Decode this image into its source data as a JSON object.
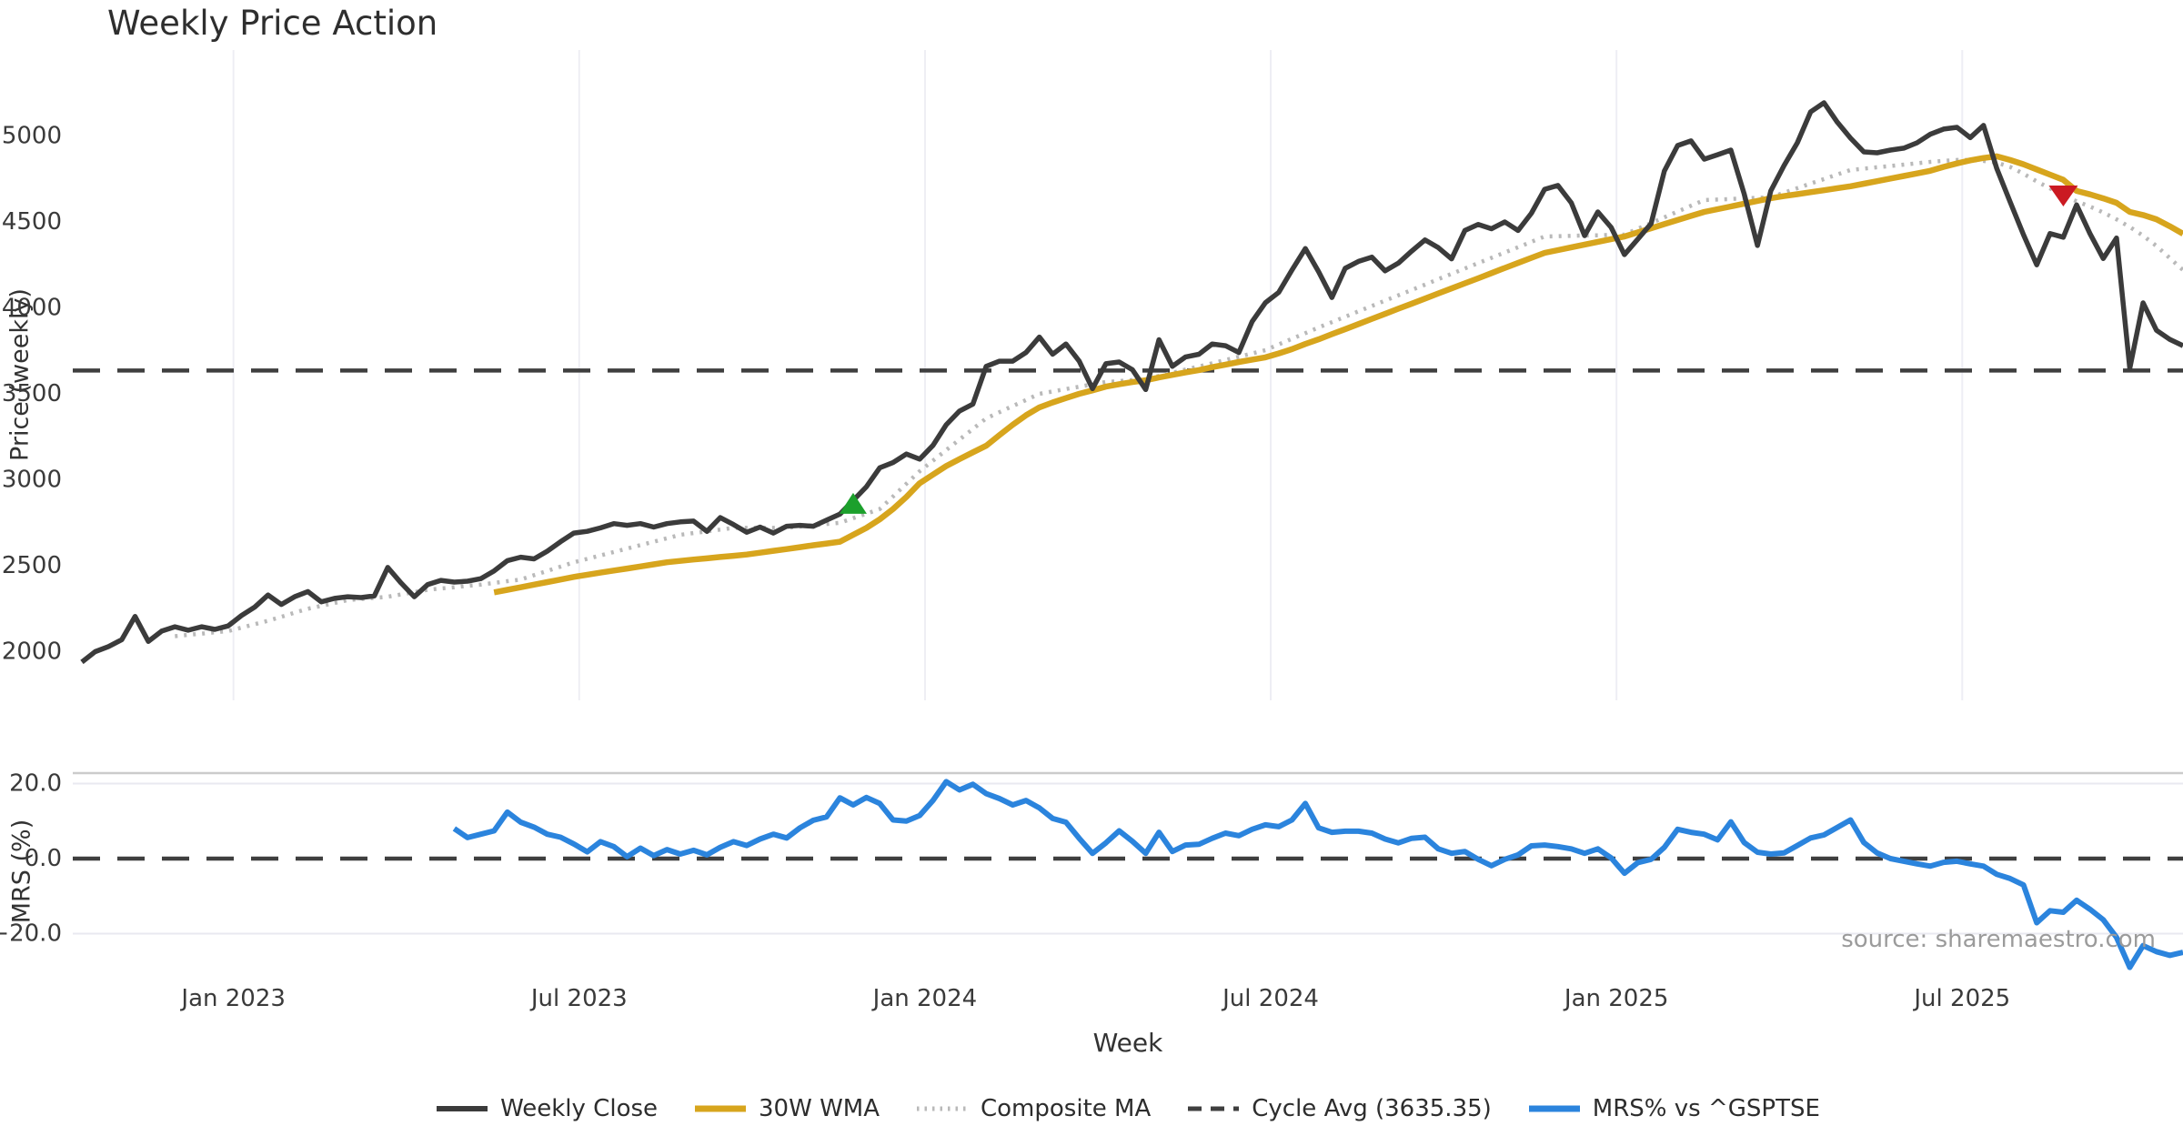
{
  "title": "Weekly Price Action",
  "xlabel": "Week",
  "source": "source: sharemaestro.com",
  "colors": {
    "weekly_close": "#3b3b3b",
    "wma_30w": "#d7a51d",
    "composite_ma": "#b9b9b9",
    "cycle_avg": "#3f3f3f",
    "mrs": "#2b84dd",
    "buy_marker_green": "#1ca02c",
    "sell_marker_red": "#cb1a22",
    "gridline": "#eeeef4",
    "panel_spine": "#cbcbcb",
    "source_text": "#9b9b9b"
  },
  "legend": [
    {
      "label": "Weekly Close",
      "color": "#3b3b3b",
      "style": "solid",
      "width": 6
    },
    {
      "label": "30W WMA",
      "color": "#d7a51d",
      "style": "solid",
      "width": 7
    },
    {
      "label": "Composite MA",
      "color": "#b9b9b9",
      "style": "dotted",
      "width": 5
    },
    {
      "label": "Cycle Avg (3635.35)",
      "color": "#3f3f3f",
      "style": "dashed",
      "width": 5
    },
    {
      "label": "MRS% vs ^GSPTSE",
      "color": "#2b84dd",
      "style": "solid",
      "width": 7
    }
  ],
  "chart_data": {
    "type": "line",
    "x_axis": {
      "label": "Week",
      "start_date": "2022-10-17",
      "interval": "weekly",
      "num_weeks": 159,
      "ticks": [
        {
          "label": "Jan 2023",
          "week": 11.4
        },
        {
          "label": "Jul 2023",
          "week": 37.4
        },
        {
          "label": "Jan 2024",
          "week": 63.4
        },
        {
          "label": "Jul 2024",
          "week": 89.4
        },
        {
          "label": "Jan 2025",
          "week": 115.4
        },
        {
          "label": "Jul 2025",
          "week": 141.4
        }
      ]
    },
    "panels": [
      {
        "id": "price",
        "ylabel": "Price (weekly)",
        "ylim": [
          1717,
          5500
        ],
        "grid": "vertical-only",
        "yticks": [
          {
            "label": "2000",
            "value": 2000
          },
          {
            "label": "2500",
            "value": 2500
          },
          {
            "label": "3000",
            "value": 3000
          },
          {
            "label": "3500",
            "value": 3500
          },
          {
            "label": "4000",
            "value": 4000
          },
          {
            "label": "4500",
            "value": 4500
          },
          {
            "label": "5000",
            "value": 5000
          }
        ],
        "series": [
          {
            "name": "Weekly Close",
            "color": "#3b3b3b",
            "style": "solid",
            "width": 5.5,
            "start_week": 0,
            "values": [
              1940,
              2000,
              2030,
              2070,
              2205,
              2060,
              2120,
              2145,
              2125,
              2145,
              2130,
              2150,
              2210,
              2260,
              2330,
              2275,
              2320,
              2350,
              2290,
              2310,
              2320,
              2315,
              2325,
              2490,
              2400,
              2320,
              2390,
              2415,
              2405,
              2410,
              2425,
              2470,
              2530,
              2550,
              2540,
              2585,
              2640,
              2690,
              2700,
              2720,
              2745,
              2735,
              2745,
              2725,
              2745,
              2755,
              2760,
              2700,
              2780,
              2740,
              2695,
              2725,
              2690,
              2730,
              2735,
              2730,
              2765,
              2800,
              2880,
              2960,
              3070,
              3100,
              3150,
              3120,
              3200,
              3320,
              3400,
              3440,
              3660,
              3690,
              3690,
              3740,
              3830,
              3730,
              3790,
              3690,
              3530,
              3675,
              3685,
              3640,
              3525,
              3815,
              3660,
              3715,
              3730,
              3790,
              3780,
              3740,
              3920,
              4030,
              4090,
              4220,
              4345,
              4210,
              4060,
              4230,
              4270,
              4295,
              4215,
              4260,
              4330,
              4395,
              4350,
              4285,
              4450,
              4485,
              4460,
              4500,
              4450,
              4550,
              4690,
              4712,
              4611,
              4420,
              4558,
              4468,
              4310,
              4400,
              4490,
              4796,
              4944,
              4971,
              4865,
              4891,
              4918,
              4664,
              4363,
              4680,
              4828,
              4960,
              5140,
              5193,
              5080,
              4987,
              4907,
              4902,
              4918,
              4929,
              4960,
              5010,
              5040,
              5050,
              4990,
              5061,
              4810,
              4617,
              4426,
              4250,
              4432,
              4411,
              4599,
              4432,
              4287,
              4406,
              3648,
              4029,
              3870,
              3817,
              3780
            ]
          },
          {
            "name": "30W WMA",
            "color": "#d7a51d",
            "style": "solid",
            "width": 6.5,
            "start_week": 31,
            "values": [
              2345,
              2360,
              2375,
              2390,
              2405,
              2420,
              2435,
              2448,
              2460,
              2472,
              2484,
              2496,
              2508,
              2520,
              2528,
              2536,
              2543,
              2551,
              2558,
              2565,
              2576,
              2587,
              2597,
              2608,
              2619,
              2629,
              2640,
              2680,
              2720,
              2770,
              2830,
              2900,
              2980,
              3030,
              3080,
              3120,
              3160,
              3198,
              3260,
              3320,
              3375,
              3421,
              3450,
              3475,
              3500,
              3520,
              3542,
              3556,
              3568,
              3579,
              3595,
              3610,
              3625,
              3638,
              3655,
              3670,
              3685,
              3699,
              3712,
              3735,
              3760,
              3790,
              3817,
              3847,
              3876,
              3906,
              3936,
              3965,
              3995,
              4024,
              4054,
              4084,
              4113,
              4143,
              4172,
              4202,
              4232,
              4261,
              4291,
              4320,
              4336,
              4352,
              4368,
              4384,
              4400,
              4415,
              4439,
              4463,
              4487,
              4511,
              4535,
              4558,
              4574,
              4590,
              4606,
              4622,
              4638,
              4650,
              4661,
              4673,
              4684,
              4696,
              4707,
              4722,
              4737,
              4752,
              4767,
              4782,
              4797,
              4820,
              4840,
              4858,
              4872,
              4881,
              4860,
              4835,
              4805,
              4775,
              4745,
              4680,
              4660,
              4637,
              4611,
              4558,
              4540,
              4515,
              4475,
              4431
            ]
          },
          {
            "name": "Composite MA",
            "color": "#b9b9b9",
            "style": "dotted",
            "width": 4.5,
            "start_week": 7,
            "values": [
              2090,
              2098,
              2105,
              2113,
              2120,
              2140,
              2160,
              2180,
              2203,
              2227,
              2250,
              2267,
              2283,
              2300,
              2307,
              2313,
              2320,
              2333,
              2347,
              2360,
              2368,
              2375,
              2383,
              2390,
              2400,
              2410,
              2420,
              2445,
              2470,
              2495,
              2520,
              2540,
              2560,
              2580,
              2600,
              2620,
              2640,
              2660,
              2680,
              2690,
              2700,
              2710,
              2720,
              2720,
              2720,
              2720,
              2720,
              2728,
              2735,
              2743,
              2750,
              2777,
              2803,
              2830,
              2903,
              2977,
              3050,
              3111,
              3173,
              3234,
              3296,
              3357,
              3393,
              3429,
              3464,
              3500,
              3514,
              3528,
              3541,
              3555,
              3569,
              3574,
              3580,
              3585,
              3604,
              3622,
              3641,
              3659,
              3678,
              3697,
              3716,
              3735,
              3754,
              3787,
              3820,
              3853,
              3886,
              3917,
              3948,
              3980,
              4011,
              4042,
              4073,
              4104,
              4135,
              4167,
              4198,
              4229,
              4260,
              4291,
              4322,
              4353,
              4384,
              4415,
              4417,
              4419,
              4421,
              4422,
              4424,
              4426,
              4460,
              4493,
              4527,
              4560,
              4594,
              4627,
              4630,
              4633,
              4637,
              4640,
              4643,
              4670,
              4696,
              4723,
              4749,
              4776,
              4802,
              4810,
              4818,
              4825,
              4833,
              4841,
              4849,
              4855,
              4860,
              4860,
              4855,
              4845,
              4820,
              4780,
              4735,
              4695,
              4653,
              4620,
              4590,
              4555,
              4515,
              4470,
              4420,
              4360,
              4290,
              4220
            ]
          },
          {
            "name": "Cycle Avg",
            "color": "#3f3f3f",
            "style": "dashed",
            "width": 4.5,
            "type": "hline",
            "value": 3635.35
          }
        ],
        "markers": [
          {
            "shape": "triangle-up",
            "color": "#1ca02c",
            "week": 58,
            "value": 2855
          },
          {
            "shape": "triangle-down",
            "color": "#cb1a22",
            "week": 149,
            "value": 4653
          }
        ]
      },
      {
        "id": "mrs",
        "ylabel": "MRS (%)",
        "ylim": [
          -31,
          22.8
        ],
        "yticks": [
          {
            "label": "20.0",
            "value": 20
          },
          {
            "label": "0.0",
            "value": 0
          },
          {
            "label": "−20.0",
            "value": -20
          }
        ],
        "series": [
          {
            "name": "MRS% vs ^GSPTSE",
            "color": "#2b84dd",
            "style": "solid",
            "width": 6,
            "start_week": 28,
            "values": [
              8.0,
              5.6,
              6.5,
              7.4,
              12.4,
              9.7,
              8.4,
              6.5,
              5.7,
              3.9,
              1.8,
              4.5,
              3.2,
              0.5,
              2.8,
              0.8,
              2.4,
              1.2,
              2.2,
              1.0,
              3.0,
              4.5,
              3.5,
              5.2,
              6.5,
              5.5,
              8.2,
              10.2,
              11.1,
              16.2,
              14.3,
              16.3,
              14.7,
              10.3,
              10.0,
              11.5,
              15.5,
              20.5,
              18.3,
              19.8,
              17.3,
              16.0,
              14.3,
              15.5,
              13.5,
              10.7,
              9.7,
              5.4,
              1.4,
              4.2,
              7.4,
              4.6,
              1.4,
              7.0,
              1.9,
              3.6,
              3.8,
              5.4,
              6.8,
              6.1,
              7.8,
              9.0,
              8.5,
              10.3,
              14.7,
              8.2,
              7.0,
              7.3,
              7.3,
              6.8,
              5.2,
              4.2,
              5.4,
              5.7,
              2.6,
              1.4,
              1.9,
              -0.2,
              -1.9,
              -0.2,
              1.0,
              3.4,
              3.6,
              3.2,
              2.6,
              1.4,
              2.6,
              0.2,
              -3.9,
              -1.1,
              -0.2,
              3.0,
              7.8,
              7.0,
              6.5,
              5.0,
              9.8,
              4.3,
              1.7,
              1.2,
              1.5,
              3.5,
              5.5,
              6.3,
              8.3,
              10.3,
              4.3,
              1.5,
              0.0,
              -0.7,
              -1.4,
              -2.0,
              -1.0,
              -0.7,
              -1.4,
              -2.0,
              -4.2,
              -5.3,
              -7.0,
              -17.1,
              -13.9,
              -14.3,
              -11.1,
              -13.5,
              -16.3,
              -21.0,
              -29.0,
              -23.2,
              -24.8,
              -25.8,
              -25.0
            ]
          },
          {
            "name": "Zero Line",
            "color": "#3f3f3f",
            "style": "dashed",
            "width": 4.5,
            "type": "hline",
            "value": 0
          }
        ]
      }
    ]
  }
}
